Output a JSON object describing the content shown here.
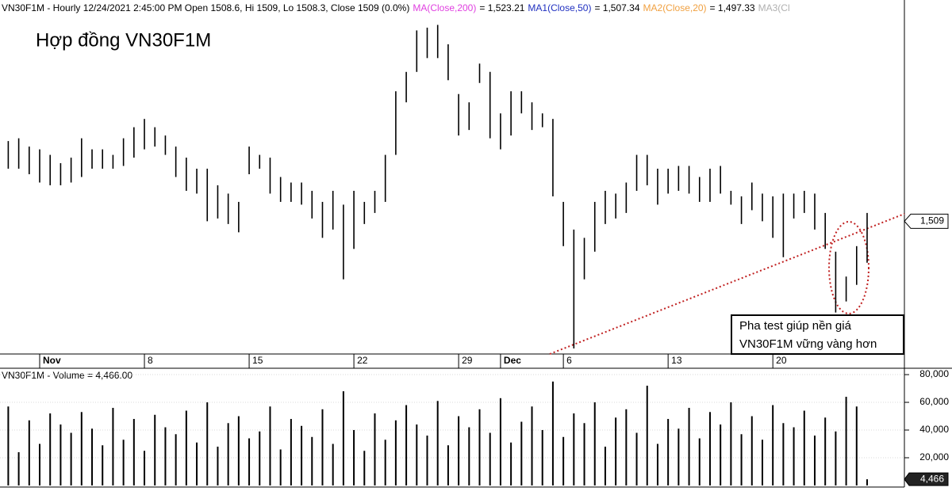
{
  "chart_data": [
    {
      "type": "hilo",
      "title": "VN30F1M - Hourly 12/24/2021 2:45:00 PM Open 1508.6, Hi 1509, Lo 1508.3, Close 1509 (0.0%)",
      "legend": [
        {
          "name": "MA(Close,200)",
          "color": "#e040e0",
          "value_label": "= 1,523.21"
        },
        {
          "name": "MA1(Close,50)",
          "color": "#2030c0",
          "value_label": "= 1,507.34"
        },
        {
          "name": "MA2(Close,20)",
          "color": "#f0a040",
          "value_label": "= 1,497.33"
        },
        {
          "name": "MA3(Cl",
          "color": "#b0b0b0"
        }
      ],
      "annotations": [
        "Hợp đồng VN30F1M",
        "Pha test giúp nền giá",
        "VN30F1M vững vàng hơn"
      ],
      "categories": [
        null,
        null,
        null,
        null,
        "Nov",
        null,
        null,
        null,
        null,
        null,
        null,
        null,
        null,
        null,
        "8",
        null,
        null,
        null,
        null,
        null,
        null,
        null,
        null,
        null,
        "15",
        null,
        null,
        null,
        null,
        null,
        null,
        null,
        null,
        null,
        "22",
        null,
        null,
        null,
        null,
        null,
        null,
        null,
        null,
        null,
        "29",
        null,
        null,
        null,
        "Dec",
        null,
        null,
        null,
        null,
        null,
        "6",
        null,
        null,
        null,
        null,
        null,
        null,
        null,
        null,
        null,
        "13",
        null,
        null,
        null,
        null,
        null,
        null,
        null,
        null,
        null,
        "20",
        null,
        null,
        null,
        null,
        null,
        null,
        null,
        null,
        null
      ],
      "high": [
        1536,
        1538,
        1539,
        1536,
        1535,
        1533,
        1530,
        1532,
        1539,
        1535,
        1535,
        1533,
        1539,
        1543,
        1546,
        1543,
        1540,
        1536,
        1532,
        1528,
        1528,
        1522,
        1519,
        1516,
        1536,
        1533,
        1532,
        1525,
        1523,
        1523,
        1520,
        1516,
        1520,
        1515,
        1520,
        1516,
        1520,
        1533,
        1556,
        1563,
        1578,
        1579,
        1580,
        1573,
        1555,
        1552,
        1566,
        1563,
        1548,
        1556,
        1556,
        1552,
        1548,
        1546,
        1516,
        1506,
        1503,
        1516,
        1520,
        1519,
        1523,
        1533,
        1533,
        1528,
        1528,
        1529,
        1529,
        1525,
        1528,
        1529,
        1520,
        1518,
        1523,
        1519,
        1518,
        1519,
        1519,
        1520,
        1519,
        1512,
        1498,
        1489,
        1500,
        1512
      ],
      "low": [
        1520,
        1528,
        1528,
        1526,
        1523,
        1522,
        1522,
        1523,
        1525,
        1528,
        1528,
        1528,
        1529,
        1532,
        1535,
        1536,
        1533,
        1525,
        1520,
        1519,
        1509,
        1510,
        1508,
        1505,
        1526,
        1528,
        1519,
        1516,
        1516,
        1515,
        1510,
        1503,
        1506,
        1488,
        1499,
        1508,
        1512,
        1516,
        1533,
        1552,
        1563,
        1568,
        1568,
        1560,
        1540,
        1542,
        1559,
        1539,
        1535,
        1540,
        1548,
        1542,
        1543,
        1518,
        1500,
        1463,
        1488,
        1498,
        1508,
        1510,
        1512,
        1520,
        1522,
        1515,
        1519,
        1520,
        1519,
        1516,
        1516,
        1519,
        1515,
        1508,
        1513,
        1509,
        1503,
        1496,
        1510,
        1512,
        1506,
        1499,
        1476,
        1480,
        1486,
        1494
      ],
      "color": "#000000",
      "ylim": [
        1461,
        1589
      ],
      "last": {
        "value": 1509,
        "label": "1,509"
      }
    },
    {
      "type": "bar",
      "title": "VN30F1M - Volume = 4,466.00",
      "values": [
        36000,
        57000,
        24000,
        47000,
        30000,
        52000,
        44000,
        38000,
        53000,
        41000,
        29000,
        56000,
        33000,
        48000,
        25000,
        51000,
        42000,
        37000,
        54000,
        31000,
        60000,
        28000,
        45000,
        50000,
        34000,
        39000,
        57000,
        26000,
        48000,
        43000,
        35000,
        55000,
        30000,
        68000,
        40000,
        25000,
        52000,
        33000,
        47000,
        58000,
        44000,
        36000,
        61000,
        29000,
        50000,
        42000,
        55000,
        38000,
        63000,
        31000,
        46000,
        57000,
        40000,
        75000,
        35000,
        52000,
        45000,
        60000,
        28000,
        49000,
        55000,
        38000,
        72000,
        30000,
        48000,
        41000,
        56000,
        34000,
        53000,
        44000,
        60000,
        37000,
        50000,
        33000,
        58000,
        45000,
        42000,
        54000,
        36000,
        49000,
        39000,
        64000,
        57000,
        4466
      ],
      "color": "#000000",
      "ylim": [
        0,
        84600
      ],
      "yticks": [
        {
          "value": 20000,
          "label": "20,000"
        },
        {
          "value": 40000,
          "label": "40,000"
        },
        {
          "value": 60000,
          "label": "60,000"
        },
        {
          "value": 80000,
          "label": "80,000"
        }
      ],
      "grid": true,
      "last": {
        "value": 4466,
        "label": "4,466"
      }
    }
  ]
}
